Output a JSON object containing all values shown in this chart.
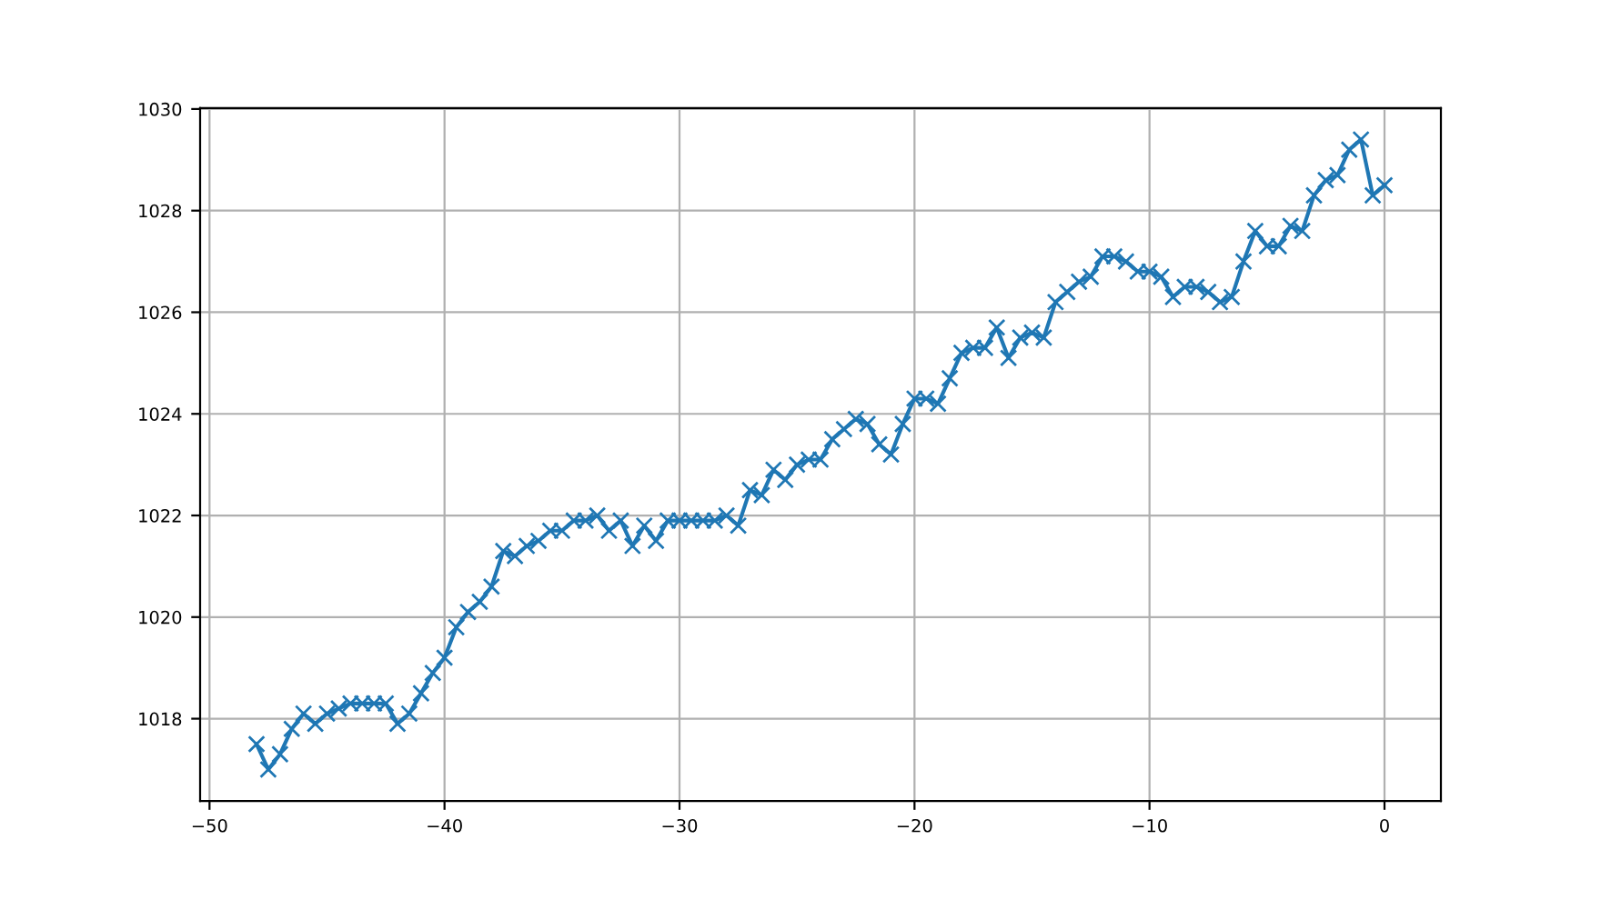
{
  "chart_data": {
    "type": "line",
    "marker": "cross",
    "grid": true,
    "x": [
      -48,
      -47.5,
      -47,
      -46.5,
      -46,
      -45.5,
      -45,
      -44.5,
      -44,
      -43.5,
      -43,
      -42.5,
      -42,
      -41.5,
      -41,
      -40.5,
      -40,
      -39.5,
      -39,
      -38.5,
      -38,
      -37.5,
      -37,
      -36.5,
      -36,
      -35.5,
      -35,
      -34.5,
      -34,
      -33.5,
      -33,
      -32.5,
      -32,
      -31.5,
      -31,
      -30.5,
      -30,
      -29.5,
      -29,
      -28.5,
      -28,
      -27.5,
      -27,
      -26.5,
      -26,
      -25.5,
      -25,
      -24.5,
      -24,
      -23.5,
      -23,
      -22.5,
      -22,
      -21.5,
      -21,
      -20.5,
      -20,
      -19.5,
      -19,
      -18.5,
      -18,
      -17.5,
      -17,
      -16.5,
      -16,
      -15.5,
      -15,
      -14.5,
      -14,
      -13.5,
      -13,
      -12.5,
      -12,
      -11.5,
      -11,
      -10.5,
      -10,
      -9.5,
      -9,
      -8.5,
      -8,
      -7.5,
      -7,
      -6.5,
      -6,
      -5.5,
      -5,
      -4.5,
      -4,
      -3.5,
      -3,
      -2.5,
      -2,
      -1.5,
      -1,
      -0.5,
      0
    ],
    "series": [
      {
        "color": "#1f77b4",
        "values": [
          1017.5,
          1017.0,
          1017.3,
          1017.8,
          1018.1,
          1017.9,
          1018.1,
          1018.2,
          1018.3,
          1018.3,
          1018.3,
          1018.3,
          1017.9,
          1018.1,
          1018.5,
          1018.9,
          1019.2,
          1019.8,
          1020.1,
          1020.3,
          1020.6,
          1021.3,
          1021.2,
          1021.4,
          1021.5,
          1021.7,
          1021.7,
          1021.9,
          1021.9,
          1022.0,
          1021.7,
          1021.9,
          1021.4,
          1021.8,
          1021.5,
          1021.9,
          1021.9,
          1021.9,
          1021.9,
          1021.9,
          1022.0,
          1021.8,
          1022.5,
          1022.4,
          1022.9,
          1022.7,
          1023.0,
          1023.1,
          1023.1,
          1023.5,
          1023.7,
          1023.9,
          1023.8,
          1023.4,
          1023.2,
          1023.8,
          1024.3,
          1024.3,
          1024.2,
          1024.7,
          1025.2,
          1025.3,
          1025.3,
          1025.7,
          1025.1,
          1025.5,
          1025.6,
          1025.5,
          1026.2,
          1026.4,
          1026.6,
          1026.7,
          1027.1,
          1027.1,
          1027.0,
          1026.8,
          1026.8,
          1026.7,
          1026.3,
          1026.5,
          1026.5,
          1026.4,
          1026.2,
          1026.3,
          1027.0,
          1027.6,
          1027.3,
          1027.3,
          1027.7,
          1027.6,
          1028.3,
          1028.6,
          1028.7,
          1029.2,
          1029.4,
          1028.3,
          1028.5
        ]
      }
    ],
    "xlim": [
      -50.4,
      2.4
    ],
    "ylim": [
      1016.38,
      1030.02
    ],
    "xticks": [
      {
        "value": -50,
        "label": "−50"
      },
      {
        "value": -40,
        "label": "−40"
      },
      {
        "value": -30,
        "label": "−30"
      },
      {
        "value": -20,
        "label": "−20"
      },
      {
        "value": -10,
        "label": "−10"
      },
      0
    ],
    "yticks": [
      1018,
      1020,
      1022,
      1024,
      1026,
      1028,
      1030
    ]
  }
}
